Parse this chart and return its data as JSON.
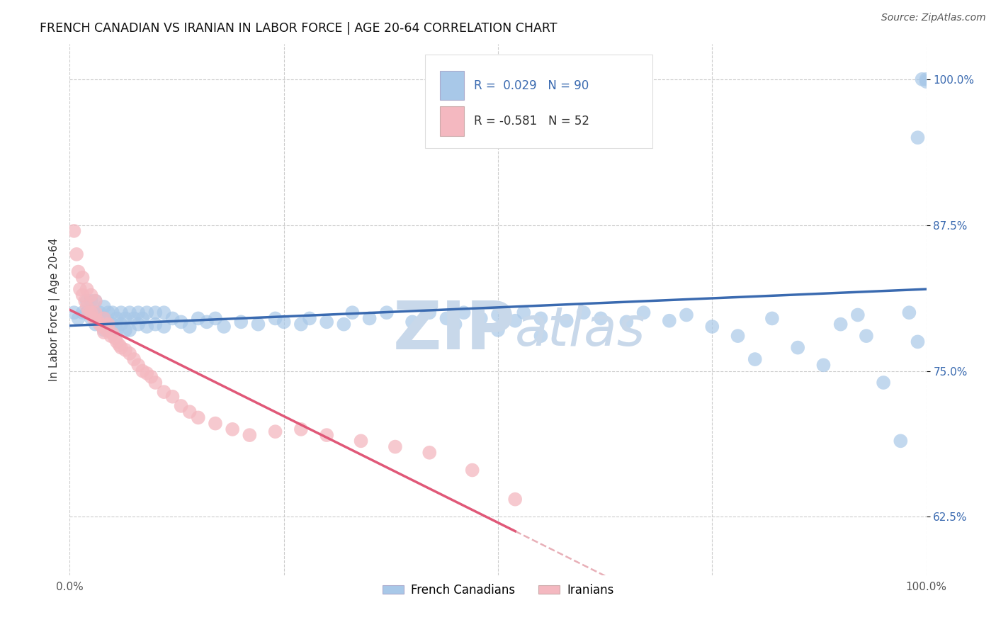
{
  "title": "FRENCH CANADIAN VS IRANIAN IN LABOR FORCE | AGE 20-64 CORRELATION CHART",
  "source_text": "Source: ZipAtlas.com",
  "ylabel": "In Labor Force | Age 20-64",
  "xlim": [
    0.0,
    1.0
  ],
  "ylim": [
    0.575,
    1.03
  ],
  "yticks": [
    0.625,
    0.75,
    0.875,
    1.0
  ],
  "ytick_labels": [
    "62.5%",
    "75.0%",
    "87.5%",
    "100.0%"
  ],
  "xticks": [
    0.0,
    0.25,
    0.5,
    0.75,
    1.0
  ],
  "xtick_labels": [
    "0.0%",
    "",
    "",
    "",
    "100.0%"
  ],
  "legend_label1": "French Canadians",
  "legend_label2": "Iranians",
  "blue_color": "#a8c8e8",
  "pink_color": "#f4b8c0",
  "blue_line_color": "#3a6ab0",
  "pink_line_color": "#e05878",
  "dashed_line_color": "#e8b0b8",
  "watermark_color": "#c8d8ea",
  "french_x": [
    0.005,
    0.01,
    0.015,
    0.02,
    0.02,
    0.025,
    0.025,
    0.03,
    0.03,
    0.03,
    0.035,
    0.04,
    0.04,
    0.04,
    0.045,
    0.045,
    0.05,
    0.05,
    0.055,
    0.055,
    0.06,
    0.06,
    0.065,
    0.065,
    0.07,
    0.07,
    0.075,
    0.08,
    0.08,
    0.085,
    0.09,
    0.09,
    0.1,
    0.1,
    0.11,
    0.11,
    0.12,
    0.13,
    0.14,
    0.15,
    0.16,
    0.17,
    0.18,
    0.2,
    0.22,
    0.24,
    0.25,
    0.27,
    0.28,
    0.3,
    0.32,
    0.33,
    0.35,
    0.37,
    0.4,
    0.42,
    0.44,
    0.45,
    0.46,
    0.48,
    0.5,
    0.5,
    0.52,
    0.53,
    0.55,
    0.55,
    0.58,
    0.6,
    0.62,
    0.65,
    0.67,
    0.7,
    0.72,
    0.75,
    0.78,
    0.8,
    0.82,
    0.85,
    0.88,
    0.9,
    0.92,
    0.93,
    0.95,
    0.97,
    0.98,
    0.99,
    0.99,
    0.995,
    1.0,
    1.0
  ],
  "french_y": [
    0.8,
    0.795,
    0.8,
    0.8,
    0.81,
    0.795,
    0.81,
    0.79,
    0.8,
    0.81,
    0.8,
    0.785,
    0.795,
    0.805,
    0.79,
    0.8,
    0.79,
    0.8,
    0.785,
    0.795,
    0.79,
    0.8,
    0.785,
    0.795,
    0.785,
    0.8,
    0.795,
    0.79,
    0.8,
    0.795,
    0.788,
    0.8,
    0.79,
    0.8,
    0.788,
    0.8,
    0.795,
    0.792,
    0.788,
    0.795,
    0.792,
    0.795,
    0.788,
    0.792,
    0.79,
    0.795,
    0.792,
    0.79,
    0.795,
    0.792,
    0.79,
    0.8,
    0.795,
    0.8,
    0.792,
    0.8,
    0.795,
    0.79,
    0.8,
    0.795,
    0.785,
    0.798,
    0.793,
    0.8,
    0.78,
    0.795,
    0.793,
    0.8,
    0.795,
    0.792,
    0.8,
    0.793,
    0.798,
    0.788,
    0.78,
    0.76,
    0.795,
    0.77,
    0.755,
    0.79,
    0.798,
    0.78,
    0.74,
    0.69,
    0.8,
    0.95,
    0.775,
    1.0,
    1.0,
    0.998
  ],
  "iranian_x": [
    0.005,
    0.008,
    0.01,
    0.012,
    0.015,
    0.015,
    0.018,
    0.02,
    0.02,
    0.022,
    0.025,
    0.025,
    0.028,
    0.03,
    0.03,
    0.032,
    0.035,
    0.038,
    0.04,
    0.04,
    0.043,
    0.045,
    0.048,
    0.05,
    0.053,
    0.055,
    0.058,
    0.06,
    0.065,
    0.07,
    0.075,
    0.08,
    0.085,
    0.09,
    0.095,
    0.1,
    0.11,
    0.12,
    0.13,
    0.14,
    0.15,
    0.17,
    0.19,
    0.21,
    0.24,
    0.27,
    0.3,
    0.34,
    0.38,
    0.42,
    0.47,
    0.52
  ],
  "iranian_y": [
    0.87,
    0.85,
    0.835,
    0.82,
    0.815,
    0.83,
    0.81,
    0.805,
    0.82,
    0.8,
    0.8,
    0.815,
    0.795,
    0.8,
    0.81,
    0.793,
    0.79,
    0.788,
    0.783,
    0.795,
    0.785,
    0.79,
    0.78,
    0.782,
    0.778,
    0.775,
    0.772,
    0.77,
    0.768,
    0.765,
    0.76,
    0.755,
    0.75,
    0.748,
    0.745,
    0.74,
    0.732,
    0.728,
    0.72,
    0.715,
    0.71,
    0.705,
    0.7,
    0.695,
    0.698,
    0.7,
    0.695,
    0.69,
    0.685,
    0.68,
    0.665,
    0.64
  ]
}
